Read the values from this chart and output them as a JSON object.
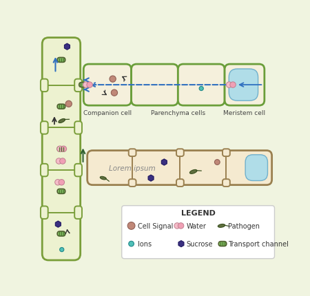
{
  "bg_color": "#f0f4e0",
  "stem_bg_color": "#edf2d0",
  "stem_border_color": "#7a9e3a",
  "cell_interior_top": "#f5f0dc",
  "cell_border_top": "#6a9e3a",
  "cell_interior_low": "#f5ead0",
  "cell_border_low": "#9a8050",
  "vacuole_color": "#b0dde8",
  "vacuole_border": "#70b0cc",
  "colors": {
    "cell_signal": "#c08878",
    "water_l": "#f5bcc8",
    "water_r": "#f0a0b5",
    "pathogen": "#607040",
    "ions": "#50c0b8",
    "sucrose": "#3a3080",
    "transport_fill": "#80b860",
    "transport_stripe": "#4a7830",
    "transport_border": "#506030"
  },
  "companion_label": "Companion cell",
  "parenchyma_label": "Parenchyma cells",
  "meristem_label": "Meristem cell",
  "lorem_label": "Lorem ipsum",
  "legend_items_row1": [
    "Cell Signal",
    "Water",
    "Pathogen"
  ],
  "legend_items_row2": [
    "Ions",
    "Sucrose",
    "Transport channel"
  ]
}
